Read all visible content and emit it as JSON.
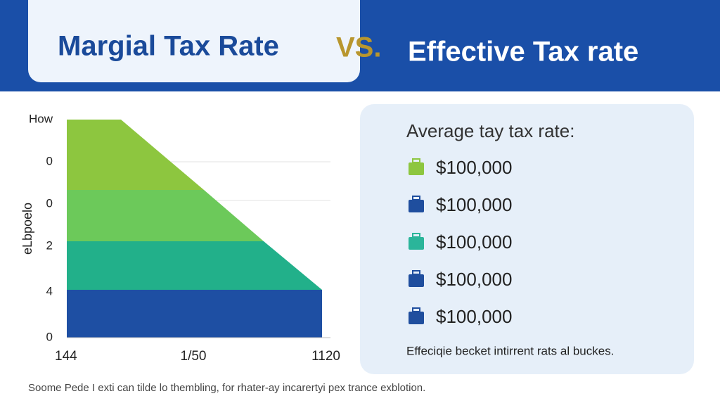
{
  "header": {
    "title_left": "Margial Tax Rate",
    "vs": "VS.",
    "title_right": "Effective Tax rate"
  },
  "chart": {
    "y_label": "eLbpoelo",
    "y_ticks": [
      "How",
      "0",
      "0",
      "2",
      "4",
      "0"
    ],
    "x_ticks": [
      "144",
      "1/50",
      "1120"
    ]
  },
  "panel": {
    "heading": "Average tay tax rate:",
    "items": [
      {
        "label": "$100,000",
        "color": "#8dc63f"
      },
      {
        "label": "$100,000",
        "color": "#1f4e9e"
      },
      {
        "label": "$100,000",
        "color": "#2bb59a"
      },
      {
        "label": "$100,000",
        "color": "#1f4e9e"
      },
      {
        "label": "$100,000",
        "color": "#1f4e9e"
      }
    ],
    "note": "Effeciqie becket intirrent rats al buckes."
  },
  "footer": {
    "text": "Soome Pede I exti can tilde lo thembling, for rhater-ay incarertyi pex trance exblotion."
  }
}
